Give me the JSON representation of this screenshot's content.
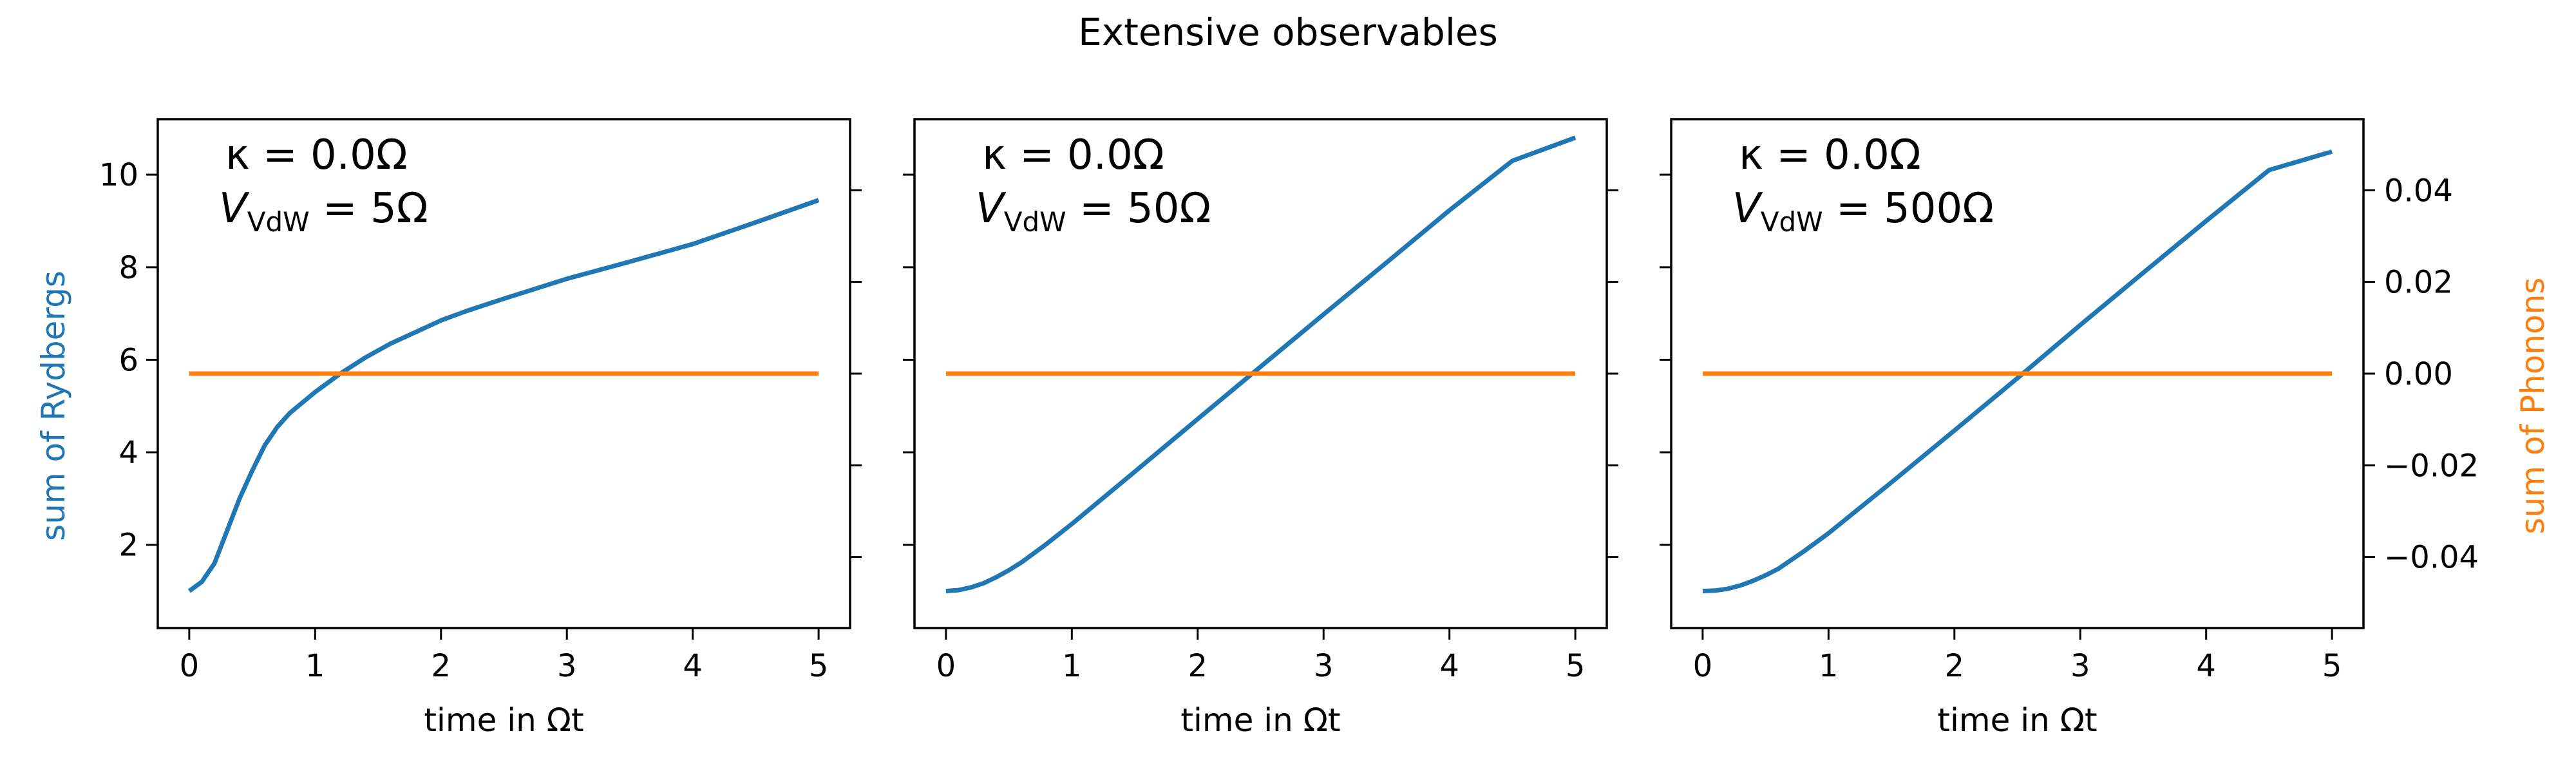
{
  "figure": {
    "title": "Extensive observables",
    "colors": {
      "rydberg": "#1f77b4",
      "phonon": "#ff7f0e",
      "axis": "#000000"
    },
    "left_ylabel": "sum of Rydbergs",
    "right_ylabel": "sum of Phonons"
  },
  "chart_data": [
    {
      "type": "line",
      "xlabel": "time in Ωt",
      "xlim": [
        -0.25,
        5.25
      ],
      "ylim": [
        0.2,
        11.2
      ],
      "y2lim": [
        -0.0555,
        0.0555
      ],
      "x_ticks": [
        0,
        1,
        2,
        3,
        4,
        5
      ],
      "y_ticks": [
        2,
        4,
        6,
        8,
        10
      ],
      "y2_ticks": [
        -0.04,
        -0.02,
        0.0,
        0.02,
        0.04
      ],
      "y2_tick_labels": [
        "−0.04",
        "−0.02",
        "0.00",
        "0.02",
        "0.04"
      ],
      "annotation": {
        "kappa": "κ = 0.0Ω",
        "vdw_prefix": "V",
        "vdw_sub": "VdW",
        "vdw_value": " = 5Ω"
      },
      "series": [
        {
          "name": "sum of Rydbergs",
          "axis": "left",
          "x": [
            0,
            0.1,
            0.2,
            0.3,
            0.4,
            0.5,
            0.6,
            0.7,
            0.8,
            1.0,
            1.2,
            1.4,
            1.6,
            1.8,
            2.0,
            2.2,
            2.5,
            3.0,
            3.5,
            4.0,
            4.5,
            5.0
          ],
          "y": [
            1.0,
            1.2,
            1.6,
            2.3,
            3.0,
            3.6,
            4.15,
            4.55,
            4.85,
            5.3,
            5.7,
            6.05,
            6.35,
            6.6,
            6.85,
            7.05,
            7.32,
            7.75,
            8.12,
            8.5,
            8.97,
            9.45
          ]
        },
        {
          "name": "sum of Phonons",
          "axis": "right",
          "x": [
            0,
            5
          ],
          "y": [
            0.0,
            0.0
          ]
        }
      ]
    },
    {
      "type": "line",
      "xlabel": "time in Ωt",
      "xlim": [
        -0.25,
        5.25
      ],
      "ylim": [
        0.2,
        11.2
      ],
      "y2lim": [
        -0.0555,
        0.0555
      ],
      "x_ticks": [
        0,
        1,
        2,
        3,
        4,
        5
      ],
      "y_ticks": [
        2,
        4,
        6,
        8,
        10
      ],
      "y2_ticks": [
        -0.04,
        -0.02,
        0.0,
        0.02,
        0.04
      ],
      "annotation": {
        "kappa": "κ = 0.0Ω",
        "vdw_prefix": "V",
        "vdw_sub": "VdW",
        "vdw_value": " = 50Ω"
      },
      "series": [
        {
          "name": "sum of Rydbergs",
          "axis": "left",
          "x": [
            0,
            0.1,
            0.2,
            0.3,
            0.4,
            0.5,
            0.6,
            0.8,
            1.0,
            1.5,
            2.0,
            2.5,
            3.0,
            3.5,
            4.0,
            4.5,
            5.0
          ],
          "y": [
            1.0,
            1.02,
            1.08,
            1.17,
            1.3,
            1.45,
            1.62,
            2.02,
            2.45,
            3.58,
            4.72,
            5.85,
            6.98,
            8.1,
            9.23,
            10.3,
            10.8
          ]
        },
        {
          "name": "sum of Phonons",
          "axis": "right",
          "x": [
            0,
            5
          ],
          "y": [
            0.0,
            0.0
          ]
        }
      ]
    },
    {
      "type": "line",
      "xlabel": "time in Ωt",
      "xlim": [
        -0.25,
        5.25
      ],
      "ylim": [
        0.2,
        11.2
      ],
      "y2lim": [
        -0.0555,
        0.0555
      ],
      "x_ticks": [
        0,
        1,
        2,
        3,
        4,
        5
      ],
      "y_ticks": [
        2,
        4,
        6,
        8,
        10
      ],
      "y2_ticks": [
        -0.04,
        -0.02,
        0.0,
        0.02,
        0.04
      ],
      "y2_tick_labels": [
        "−0.04",
        "−0.02",
        "0.00",
        "0.02",
        "0.04"
      ],
      "annotation": {
        "kappa": "κ = 0.0Ω",
        "vdw_prefix": "V",
        "vdw_sub": "VdW",
        "vdw_value": " = 500Ω"
      },
      "series": [
        {
          "name": "sum of Rydbergs",
          "axis": "left",
          "x": [
            0,
            0.1,
            0.2,
            0.3,
            0.4,
            0.5,
            0.6,
            0.8,
            1.0,
            1.5,
            2.0,
            2.5,
            3.0,
            3.5,
            4.0,
            4.5,
            5.0
          ],
          "y": [
            1.0,
            1.01,
            1.05,
            1.12,
            1.22,
            1.34,
            1.48,
            1.85,
            2.25,
            3.35,
            4.47,
            5.6,
            6.75,
            7.88,
            9.0,
            10.1,
            10.5
          ]
        },
        {
          "name": "sum of Phonons",
          "axis": "right",
          "x": [
            0,
            5
          ],
          "y": [
            0.0,
            0.0
          ]
        }
      ]
    }
  ]
}
